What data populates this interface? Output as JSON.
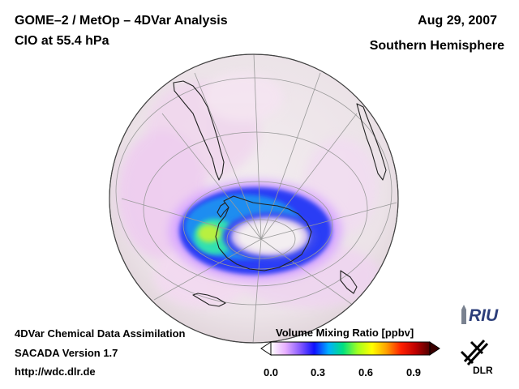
{
  "header": {
    "title": "GOME–2 / MetOp – 4DVar Analysis",
    "subtitle": "ClO at 55.4 hPa",
    "date": "Aug 29, 2007",
    "hemisphere": "Southern Hemisphere"
  },
  "footer": {
    "line1": "4DVar Chemical Data Assimilation",
    "line2": "SACADA Version 1.7",
    "line3": "http://wdc.dlr.de"
  },
  "colorbar": {
    "title": "Volume Mixing Ratio [ppbv]",
    "ticks": [
      "0.0",
      "0.3",
      "0.6",
      "0.9"
    ],
    "colors": [
      "#ffffff",
      "#e8b0ff",
      "#8a5cff",
      "#1010ff",
      "#00b0ff",
      "#00e080",
      "#a0ff20",
      "#ffff00",
      "#ffa000",
      "#ff2000",
      "#c00000",
      "#500000"
    ]
  },
  "logos": {
    "riu": "RIU",
    "dlr": "DLR"
  }
}
